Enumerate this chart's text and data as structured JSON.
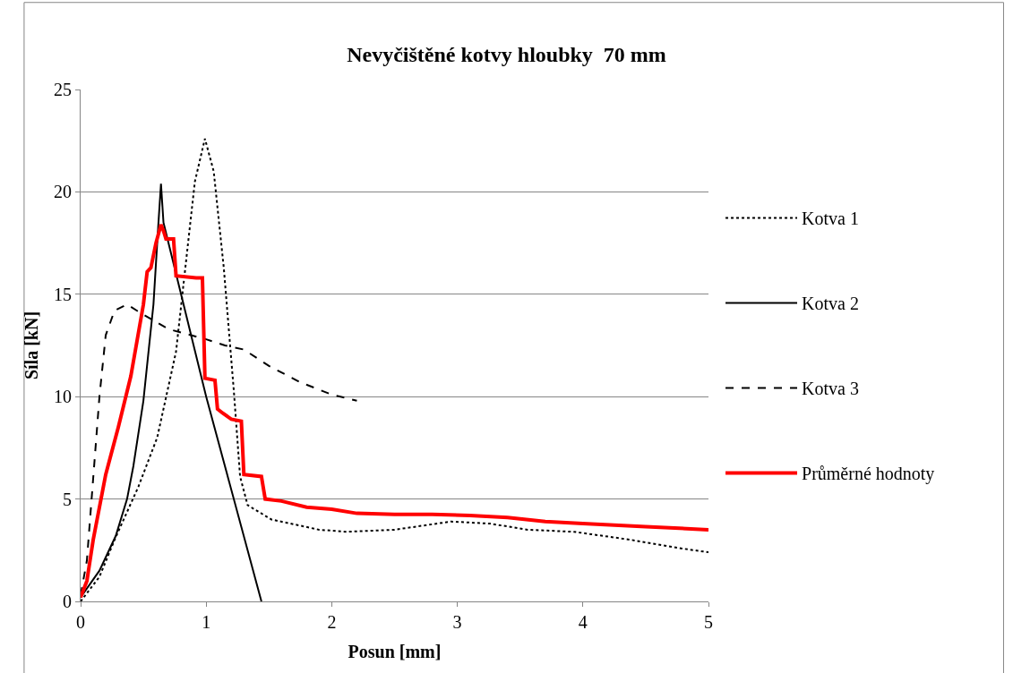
{
  "chart_data": {
    "type": "line",
    "title": "Nevyčištěné kotvy hloubky  70 mm",
    "xlabel": "Posun [mm]",
    "ylabel": "Síla [kN]",
    "xlim": [
      0,
      5
    ],
    "xticks": [
      0,
      1,
      2,
      3,
      4,
      5
    ],
    "ylim": [
      0,
      25
    ],
    "yticks": [
      0,
      5,
      10,
      15,
      20,
      25
    ],
    "grid": "y",
    "legend": "right",
    "marker": "none",
    "series": [
      {
        "name": "Kotva 1",
        "color": "#000000",
        "line_style": "dotted",
        "x": [
          0,
          0.15,
          0.27,
          0.46,
          0.61,
          0.76,
          0.91,
          0.99,
          1.06,
          1.14,
          1.22,
          1.27,
          1.33,
          1.52,
          1.9,
          2.12,
          2.5,
          2.95,
          3.26,
          3.56,
          3.93,
          4.39,
          4.77,
          5
        ],
        "values": [
          0,
          1.2,
          3,
          5.6,
          8,
          12.2,
          20.5,
          22.6,
          21,
          16.3,
          10.3,
          6.1,
          4.7,
          4.0,
          3.5,
          3.4,
          3.5,
          3.9,
          3.8,
          3.5,
          3.4,
          3.0,
          2.6,
          2.4
        ]
      },
      {
        "name": "Kotva 2",
        "color": "#000000",
        "line_style": "solid",
        "x": [
          0,
          0.15,
          0.28,
          0.37,
          0.42,
          0.5,
          0.58,
          0.62,
          0.64,
          0.66,
          1.0,
          1.44
        ],
        "values": [
          0.2,
          1.5,
          3.2,
          5.0,
          6.6,
          9.8,
          14.5,
          18.5,
          20.4,
          18.5,
          10.0,
          0
        ]
      },
      {
        "name": "Kotva 3",
        "color": "#000000",
        "line_style": "dashed",
        "x": [
          0,
          0.05,
          0.1,
          0.15,
          0.2,
          0.27,
          0.37,
          0.5,
          0.7,
          1.0,
          1.15,
          1.3,
          1.5,
          1.75,
          2.0,
          2.2
        ],
        "values": [
          0.3,
          2,
          6,
          10,
          13,
          14.2,
          14.5,
          14.0,
          13.3,
          12.8,
          12.5,
          12.3,
          11.5,
          10.7,
          10.1,
          9.8
        ]
      },
      {
        "name": "Průměrné hodnoty",
        "color": "#ff0000",
        "line_style": "solid",
        "x": [
          0,
          0.05,
          0.1,
          0.2,
          0.3,
          0.4,
          0.5,
          0.53,
          0.56,
          0.6,
          0.64,
          0.66,
          0.68,
          0.74,
          0.76,
          0.92,
          0.97,
          0.99,
          1.07,
          1.09,
          1.13,
          1.2,
          1.28,
          1.3,
          1.44,
          1.47,
          1.6,
          1.8,
          2.0,
          2.2,
          2.5,
          2.8,
          3.1,
          3.4,
          3.7,
          4.0,
          4.5,
          5
        ],
        "values": [
          0.2,
          1,
          3,
          6.2,
          8.5,
          11,
          14.5,
          16.1,
          16.3,
          17.5,
          18.4,
          18.1,
          17.7,
          17.7,
          15.9,
          15.8,
          15.8,
          10.9,
          10.8,
          9.4,
          9.2,
          8.9,
          8.8,
          6.2,
          6.1,
          5.0,
          4.9,
          4.6,
          4.5,
          4.3,
          4.25,
          4.25,
          4.2,
          4.1,
          3.9,
          3.8,
          3.65,
          3.5
        ]
      }
    ]
  }
}
